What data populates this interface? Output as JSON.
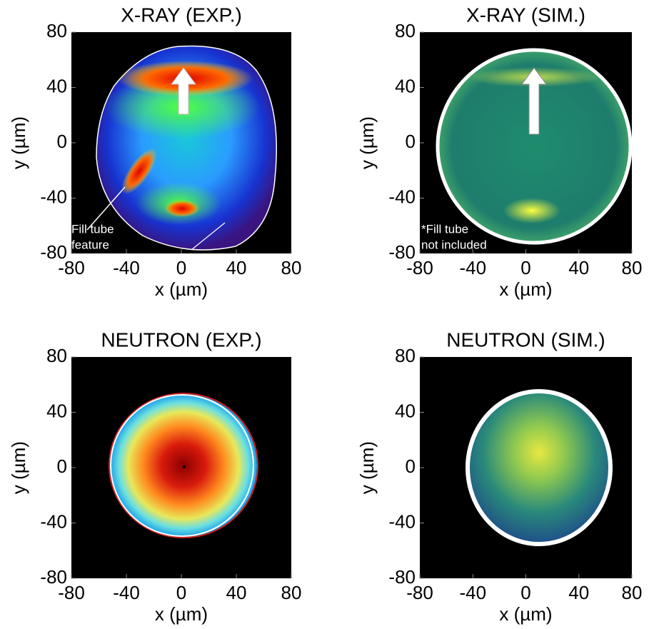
{
  "panels": [
    {
      "title": "X-RAY (EXP.)",
      "xlabel": "x (µm)",
      "ylabel": "y (µm)",
      "xlim": [
        -80,
        80
      ],
      "ylim": [
        -80,
        80
      ],
      "xticks": [
        -80,
        -40,
        0,
        40,
        80
      ],
      "yticks": [
        -80,
        -40,
        0,
        40,
        80
      ],
      "annotation": [
        "Fill tube",
        "feature"
      ]
    },
    {
      "title": "X-RAY (SIM.)",
      "xlabel": "x (µm)",
      "ylabel": "y (µm)",
      "xlim": [
        -80,
        80
      ],
      "ylim": [
        -80,
        80
      ],
      "xticks": [
        -80,
        -40,
        0,
        40,
        80
      ],
      "yticks": [
        -80,
        -40,
        0,
        40,
        80
      ],
      "annotation": [
        "*Fill tube",
        "not included"
      ]
    },
    {
      "title": "NEUTRON (EXP.)",
      "xlabel": "x (µm)",
      "ylabel": "y (µm)",
      "xlim": [
        -80,
        80
      ],
      "ylim": [
        -80,
        80
      ],
      "xticks": [
        -80,
        -40,
        0,
        40,
        80
      ],
      "yticks": [
        -80,
        -40,
        0,
        40,
        80
      ]
    },
    {
      "title": "NEUTRON (SIM.)",
      "xlabel": "x (µm)",
      "ylabel": "y (µm)",
      "xlim": [
        -80,
        80
      ],
      "ylim": [
        -80,
        80
      ],
      "xticks": [
        -80,
        -40,
        0,
        40,
        80
      ],
      "yticks": [
        -80,
        -40,
        0,
        40,
        80
      ]
    }
  ]
}
